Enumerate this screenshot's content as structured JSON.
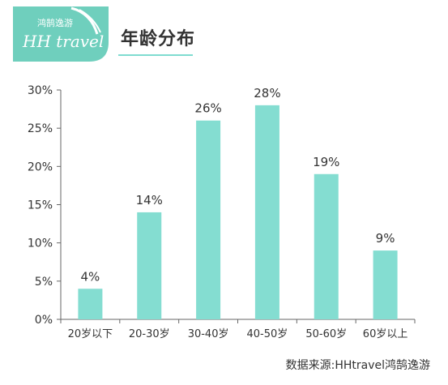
{
  "header": {
    "title": "年龄分布",
    "logo_tagline": "鸿鹄逸游",
    "logo_name": "HH travel"
  },
  "source": "数据来源:HHtravel鸿鹄逸游",
  "colors": {
    "bar": "#84ddd1",
    "logo_green": "#6fcfbd",
    "axis": "#666666",
    "text": "#333333"
  },
  "chart_data": {
    "type": "bar",
    "title": "年龄分布",
    "xlabel": "",
    "ylabel": "",
    "categories": [
      "20岁以下",
      "20-30岁",
      "30-40岁",
      "40-50岁",
      "50-60岁",
      "60岁以上"
    ],
    "values": [
      4,
      14,
      26,
      28,
      19,
      9
    ],
    "data_labels": [
      "4%",
      "14%",
      "26%",
      "28%",
      "19%",
      "9%"
    ],
    "ylim": [
      0,
      30
    ],
    "yticks": [
      0,
      5,
      10,
      15,
      20,
      25,
      30
    ],
    "ytick_labels": [
      "0%",
      "5%",
      "10%",
      "15%",
      "20%",
      "25%",
      "30%"
    ],
    "grid": false,
    "legend": "none"
  }
}
